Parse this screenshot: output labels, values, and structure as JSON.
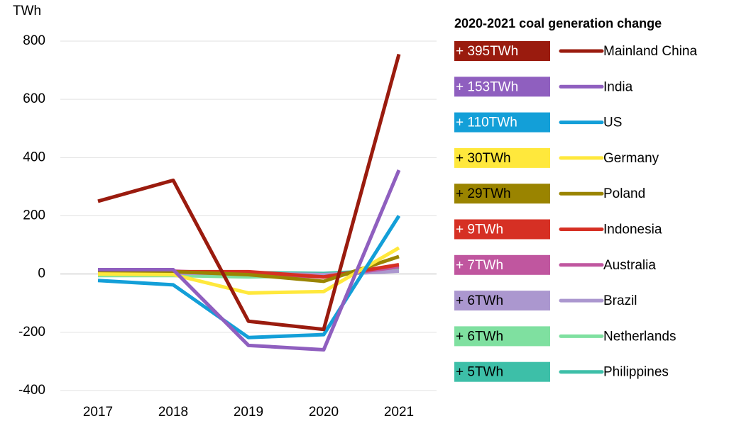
{
  "chart_data": {
    "type": "line",
    "y_axis_label": "TWh",
    "legend_title": "2020-2021 coal generation change",
    "categories": [
      "2017",
      "2018",
      "2019",
      "2020",
      "2021"
    ],
    "ylim": [
      -400,
      800
    ],
    "yticks": [
      -400,
      -200,
      0,
      200,
      400,
      600,
      800
    ],
    "grid": true,
    "series": [
      {
        "name": "Mainland China",
        "color": "#9a1b0e",
        "change_label": "+ 395TWh",
        "label_color": "#ffffff",
        "values": [
          250,
          322,
          -162,
          -190,
          755
        ]
      },
      {
        "name": "India",
        "color": "#8f5fbf",
        "change_label": "+ 153TWh",
        "label_color": "#ffffff",
        "values": [
          15,
          15,
          -245,
          -260,
          357
        ]
      },
      {
        "name": "US",
        "color": "#139fd8",
        "change_label": "+ 110TWh",
        "label_color": "#ffffff",
        "values": [
          -22,
          -37,
          -218,
          -208,
          200
        ]
      },
      {
        "name": "Germany",
        "color": "#ffe83c",
        "change_label": "+ 30TWh",
        "label_color": "#000000",
        "values": [
          0,
          -2,
          -65,
          -60,
          90
        ]
      },
      {
        "name": "Poland",
        "color": "#9a8400",
        "change_label": "+ 29TWh",
        "label_color": "#000000",
        "values": [
          5,
          8,
          -2,
          -25,
          60
        ]
      },
      {
        "name": "Indonesia",
        "color": "#d63024",
        "change_label": "+ 9TWh",
        "label_color": "#ffffff",
        "values": [
          5,
          8,
          8,
          -10,
          32
        ]
      },
      {
        "name": "Australia",
        "color": "#c0569f",
        "change_label": "+ 7TWh",
        "label_color": "#ffffff",
        "values": [
          8,
          10,
          0,
          -10,
          25
        ]
      },
      {
        "name": "Brazil",
        "color": "#ab97cf",
        "change_label": "+ 6TWh",
        "label_color": "#000000",
        "values": [
          2,
          3,
          2,
          -2,
          10
        ]
      },
      {
        "name": "Netherlands",
        "color": "#7fe0a0",
        "change_label": "+ 6TWh",
        "label_color": "#000000",
        "values": [
          -5,
          -5,
          -10,
          -5,
          12
        ]
      },
      {
        "name": "Philippines",
        "color": "#3dbfa8",
        "change_label": "+ 5TWh",
        "label_color": "#000000",
        "values": [
          3,
          5,
          5,
          2,
          15
        ]
      }
    ]
  }
}
